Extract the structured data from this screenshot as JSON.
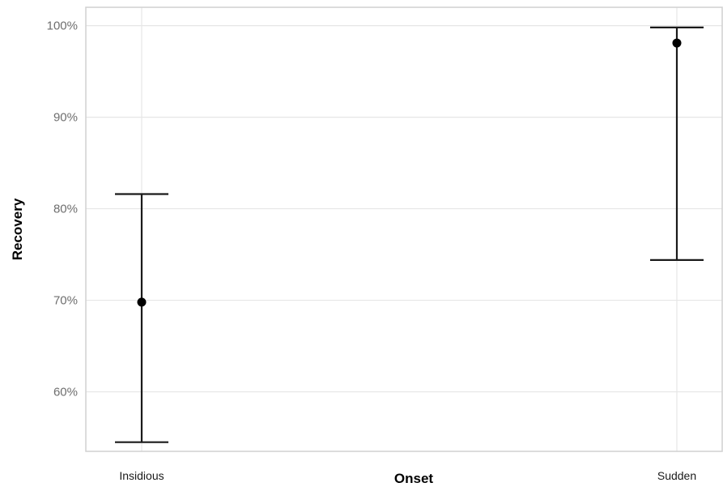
{
  "chart_data": {
    "type": "scatter",
    "title": "",
    "xlabel": "Onset",
    "ylabel": "Recovery",
    "categories": [
      "Insidious",
      "Sudden"
    ],
    "yticks": [
      "60%",
      "70%",
      "80%",
      "90%",
      "100%"
    ],
    "ytick_values": [
      60,
      70,
      80,
      90,
      100
    ],
    "ylim": [
      53.5,
      102
    ],
    "grid": true,
    "legend": "none",
    "points": [
      {
        "category": "Insidious",
        "y": 69.8,
        "lower": 54.5,
        "upper": 81.6
      },
      {
        "category": "Sudden",
        "y": 98.1,
        "lower": 74.4,
        "upper": 99.8
      }
    ]
  }
}
